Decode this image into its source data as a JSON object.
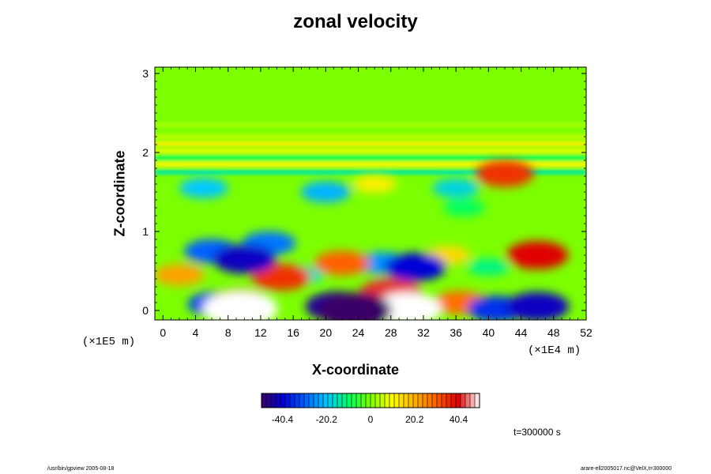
{
  "chart_data": {
    "type": "heatmap",
    "title": "zonal velocity",
    "xlabel": "X-coordinate",
    "ylabel": "Z-coordinate",
    "x_unit": "(×1E4 m)",
    "z_unit": "(×1E5 m)",
    "xlim": [
      -1,
      52
    ],
    "ylim": [
      -0.12,
      3.08
    ],
    "x_ticks": [
      "0",
      "4",
      "8",
      "12",
      "16",
      "20",
      "24",
      "28",
      "32",
      "36",
      "40",
      "44",
      "48",
      "52"
    ],
    "y_ticks": [
      "0",
      "1",
      "2",
      "3"
    ],
    "colorbar": {
      "min": -50,
      "max": 50,
      "tick_labels": [
        "-40.4",
        "-20.2",
        "0",
        "20.2",
        "40.4"
      ],
      "tick_values": [
        -40.4,
        -20.2,
        0,
        20.2,
        40.4
      ]
    },
    "background_value": 0,
    "bands": [
      {
        "z": 1.75,
        "value": -14
      },
      {
        "z": 1.85,
        "value": 11
      },
      {
        "z": 1.93,
        "value": -9
      },
      {
        "z": 2.02,
        "value": 8
      },
      {
        "z": 2.11,
        "value": 12
      },
      {
        "z": 2.2,
        "value": 5
      },
      {
        "z": 2.35,
        "value": 3
      }
    ],
    "features": [
      {
        "x": 9.5,
        "z": 0.02,
        "value": 60
      },
      {
        "x": 9.5,
        "z": 0.1,
        "value": 38
      },
      {
        "x": 6.5,
        "z": 0.08,
        "value": -32
      },
      {
        "x": 21.5,
        "z": 0.05,
        "value": -45
      },
      {
        "x": 23.5,
        "z": 0.0,
        "value": -60
      },
      {
        "x": 30,
        "z": 0.02,
        "value": 52
      },
      {
        "x": 28,
        "z": 0.22,
        "value": 42
      },
      {
        "x": 46,
        "z": 0.05,
        "value": -42
      },
      {
        "x": 41,
        "z": 0.02,
        "value": -35
      },
      {
        "x": 36.5,
        "z": 0.1,
        "value": 28
      },
      {
        "x": 46,
        "z": 0.7,
        "value": 40
      },
      {
        "x": 42,
        "z": 1.73,
        "value": 35
      },
      {
        "x": 10,
        "z": 0.65,
        "value": -42
      },
      {
        "x": 6,
        "z": 0.75,
        "value": -30
      },
      {
        "x": 13,
        "z": 0.85,
        "value": -28
      },
      {
        "x": 22,
        "z": 0.6,
        "value": 30
      },
      {
        "x": 31,
        "z": 0.55,
        "value": -40
      },
      {
        "x": 27,
        "z": 0.6,
        "value": -25
      },
      {
        "x": 14.5,
        "z": 0.42,
        "value": 35
      },
      {
        "x": 5,
        "z": 1.55,
        "value": -20
      },
      {
        "x": 20,
        "z": 1.5,
        "value": -22
      },
      {
        "x": 36,
        "z": 1.55,
        "value": -18
      },
      {
        "x": 26,
        "z": 1.6,
        "value": 12
      },
      {
        "x": 35,
        "z": 0.7,
        "value": 15
      },
      {
        "x": 17,
        "z": 0.45,
        "value": -16
      },
      {
        "x": 40,
        "z": 0.55,
        "value": -12
      },
      {
        "x": 2,
        "z": 0.45,
        "value": 22
      },
      {
        "x": 37,
        "z": 1.3,
        "value": -10
      }
    ]
  },
  "labels": {
    "title": "zonal velocity",
    "xlabel": "X-coordinate",
    "ylabel": "Z-coordinate",
    "x_unit": "(×1E4 m)",
    "z_unit": "(×1E5 m)",
    "time": "t=300000 s",
    "footer_left": "/usr/bin/gpview 2005-08-18",
    "footer_right": "arare-ell2005017.nc@VelX,t=300000"
  },
  "colors": {
    "background": "#ffffff",
    "scale": [
      "#3a0068",
      "#0000d8",
      "#0060ff",
      "#00c8ff",
      "#00ff64",
      "#7cff00",
      "#ffff00",
      "#ffb000",
      "#ff6000",
      "#e00000",
      "#ffffff"
    ]
  }
}
